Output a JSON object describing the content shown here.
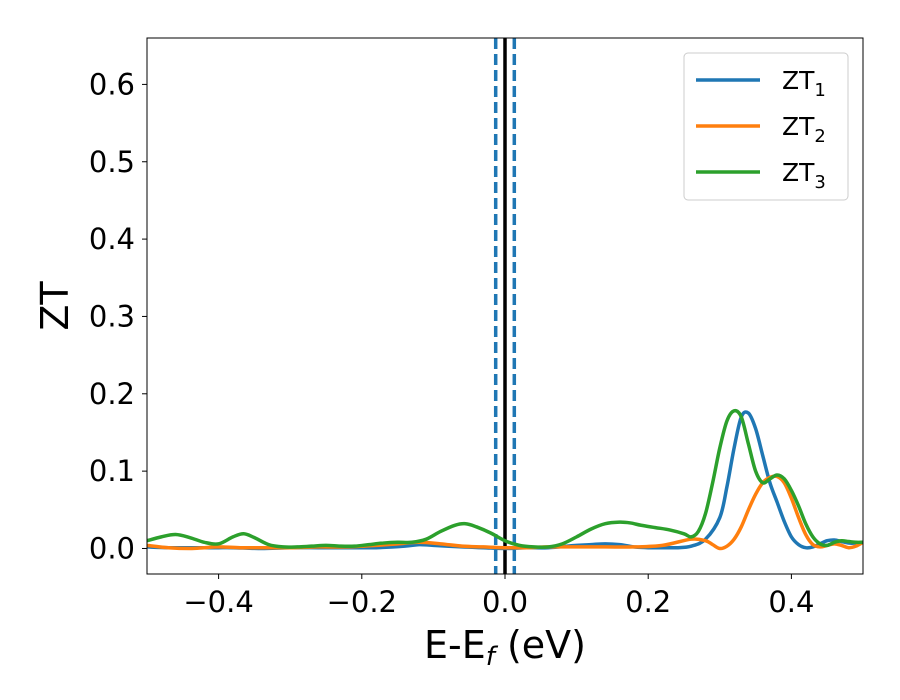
{
  "chart_data": {
    "type": "line",
    "xlabel": "E-E_f (eV)",
    "xlabel_parts": {
      "main": "E-E",
      "sub": "f",
      "tail": " (eV)"
    },
    "ylabel": "ZT",
    "xlim": [
      -0.5,
      0.5
    ],
    "ylim": [
      -0.033,
      0.66
    ],
    "xticks": [
      -0.4,
      -0.2,
      0.0,
      0.2,
      0.4
    ],
    "xtick_labels": [
      "−0.4",
      "−0.2",
      "0.0",
      "0.2",
      "0.4"
    ],
    "yticks": [
      0.0,
      0.1,
      0.2,
      0.3,
      0.4,
      0.5,
      0.6
    ],
    "ytick_labels": [
      "0.0",
      "0.1",
      "0.2",
      "0.3",
      "0.4",
      "0.5",
      "0.6"
    ],
    "grid": false,
    "legend_position": "top-right",
    "vertical_lines": [
      {
        "x": -0.013,
        "color": "#1f77b4",
        "style": "dashed"
      },
      {
        "x": 0.013,
        "color": "#1f77b4",
        "style": "dashed"
      },
      {
        "x": 0.0,
        "color": "#000000",
        "style": "solid"
      }
    ],
    "series": [
      {
        "name": "ZT_1",
        "label_main": "ZT",
        "label_sub": "1",
        "color": "#1f77b4",
        "x": [
          -0.5,
          -0.47,
          -0.44,
          -0.42,
          -0.4,
          -0.38,
          -0.34,
          -0.3,
          -0.26,
          -0.22,
          -0.18,
          -0.14,
          -0.12,
          -0.1,
          -0.06,
          -0.03,
          0.0,
          0.03,
          0.06,
          0.1,
          0.12,
          0.14,
          0.16,
          0.18,
          0.2,
          0.22,
          0.24,
          0.26,
          0.28,
          0.3,
          0.31,
          0.32,
          0.33,
          0.34,
          0.35,
          0.36,
          0.37,
          0.38,
          0.39,
          0.4,
          0.41,
          0.42,
          0.43,
          0.44,
          0.45,
          0.46,
          0.47,
          0.48,
          0.49,
          0.5
        ],
        "y": [
          0.002,
          0.001,
          0.001,
          0.001,
          0.001,
          0.001,
          0.0,
          0.001,
          0.001,
          0.001,
          0.001,
          0.003,
          0.005,
          0.004,
          0.002,
          0.001,
          0.0,
          0.001,
          0.001,
          0.004,
          0.005,
          0.006,
          0.005,
          0.002,
          0.001,
          0.001,
          0.001,
          0.003,
          0.012,
          0.04,
          0.08,
          0.13,
          0.17,
          0.175,
          0.155,
          0.12,
          0.085,
          0.06,
          0.035,
          0.015,
          0.005,
          0.001,
          0.002,
          0.006,
          0.01,
          0.011,
          0.009,
          0.007,
          0.007,
          0.008
        ]
      },
      {
        "name": "ZT_2",
        "label_main": "ZT",
        "label_sub": "2",
        "color": "#ff7f0e",
        "x": [
          -0.5,
          -0.47,
          -0.44,
          -0.42,
          -0.4,
          -0.37,
          -0.34,
          -0.3,
          -0.26,
          -0.22,
          -0.18,
          -0.15,
          -0.12,
          -0.09,
          -0.06,
          -0.03,
          0.0,
          0.03,
          0.06,
          0.1,
          0.14,
          0.18,
          0.22,
          0.26,
          0.28,
          0.29,
          0.3,
          0.31,
          0.32,
          0.33,
          0.34,
          0.35,
          0.36,
          0.37,
          0.38,
          0.39,
          0.4,
          0.41,
          0.42,
          0.43,
          0.44,
          0.45,
          0.46,
          0.47,
          0.48,
          0.49,
          0.5
        ],
        "y": [
          0.004,
          0.001,
          0.0,
          0.001,
          0.002,
          0.001,
          0.001,
          0.001,
          0.002,
          0.002,
          0.004,
          0.006,
          0.008,
          0.006,
          0.003,
          0.002,
          0.001,
          0.001,
          0.002,
          0.002,
          0.002,
          0.002,
          0.004,
          0.012,
          0.01,
          0.005,
          0.0,
          0.003,
          0.012,
          0.028,
          0.05,
          0.07,
          0.085,
          0.092,
          0.093,
          0.085,
          0.065,
          0.04,
          0.018,
          0.005,
          0.002,
          0.004,
          0.006,
          0.004,
          0.001,
          0.003,
          0.008
        ]
      },
      {
        "name": "ZT_3",
        "label_main": "ZT",
        "label_sub": "3",
        "color": "#2ca02c",
        "x": [
          -0.5,
          -0.48,
          -0.46,
          -0.44,
          -0.42,
          -0.4,
          -0.38,
          -0.365,
          -0.35,
          -0.33,
          -0.31,
          -0.29,
          -0.27,
          -0.25,
          -0.23,
          -0.21,
          -0.19,
          -0.17,
          -0.15,
          -0.13,
          -0.11,
          -0.09,
          -0.07,
          -0.055,
          -0.04,
          -0.02,
          0.0,
          0.02,
          0.04,
          0.06,
          0.08,
          0.1,
          0.12,
          0.14,
          0.16,
          0.175,
          0.19,
          0.21,
          0.23,
          0.25,
          0.26,
          0.27,
          0.28,
          0.29,
          0.3,
          0.31,
          0.32,
          0.33,
          0.34,
          0.35,
          0.36,
          0.37,
          0.38,
          0.39,
          0.4,
          0.41,
          0.42,
          0.43,
          0.44,
          0.45,
          0.46,
          0.47,
          0.48,
          0.49,
          0.5
        ],
        "y": [
          0.01,
          0.015,
          0.018,
          0.014,
          0.008,
          0.006,
          0.015,
          0.019,
          0.014,
          0.005,
          0.002,
          0.002,
          0.003,
          0.004,
          0.003,
          0.003,
          0.005,
          0.007,
          0.008,
          0.008,
          0.012,
          0.022,
          0.03,
          0.032,
          0.028,
          0.02,
          0.01,
          0.004,
          0.002,
          0.002,
          0.006,
          0.015,
          0.025,
          0.032,
          0.034,
          0.033,
          0.03,
          0.027,
          0.024,
          0.019,
          0.015,
          0.022,
          0.045,
          0.085,
          0.13,
          0.165,
          0.178,
          0.17,
          0.135,
          0.1,
          0.085,
          0.09,
          0.095,
          0.09,
          0.075,
          0.055,
          0.032,
          0.015,
          0.006,
          0.004,
          0.008,
          0.01,
          0.009,
          0.008,
          0.008
        ]
      }
    ]
  }
}
